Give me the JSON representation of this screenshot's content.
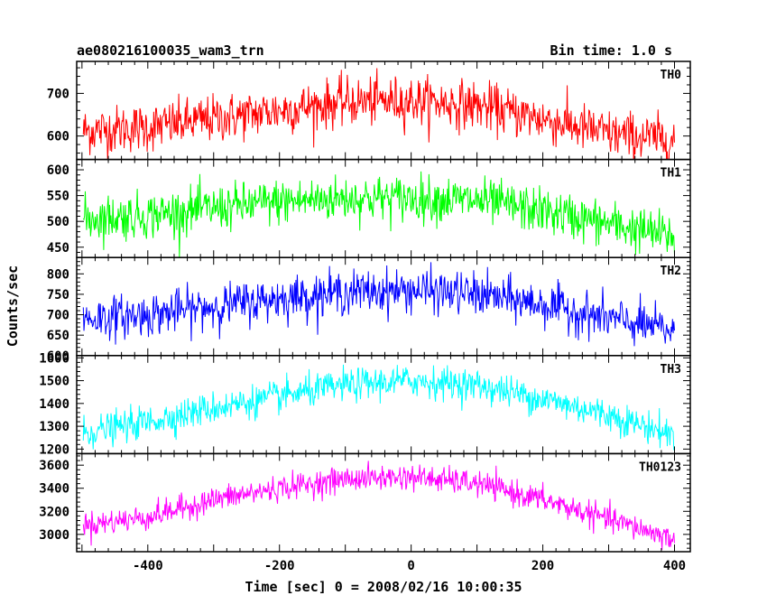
{
  "header": {
    "title": "ae080216100035_wam3_trn",
    "bin_time": "Bin time: 1.0 s"
  },
  "axes": {
    "xlabel": "Time [sec] 0 = 2008/02/16 10:00:35",
    "ylabel": "Counts/sec"
  },
  "chart_data": {
    "type": "line",
    "title": "ae080216100035_wam3_trn",
    "xlabel": "Time [sec] 0 = 2008/02/16 10:00:35",
    "ylabel": "Counts/sec",
    "xlim": [
      -508,
      424
    ],
    "xticks": [
      -400,
      -200,
      0,
      200,
      400
    ],
    "x_start": -498,
    "x_end": 400,
    "x_step": 1.0,
    "grid": false,
    "panels": [
      {
        "name": "TH0",
        "color": "#ff0000",
        "ylim": [
          545,
          775
        ],
        "yticks": [
          600,
          700
        ],
        "profile": [
          [
            -498,
            612
          ],
          [
            -400,
            620
          ],
          [
            -300,
            640
          ],
          [
            -200,
            660
          ],
          [
            -100,
            680
          ],
          [
            0,
            683
          ],
          [
            100,
            672
          ],
          [
            200,
            640
          ],
          [
            300,
            605
          ],
          [
            400,
            590
          ]
        ],
        "noise_sigma": 28
      },
      {
        "name": "TH1",
        "color": "#00ff00",
        "ylim": [
          430,
          620
        ],
        "yticks": [
          450,
          500,
          550,
          600
        ],
        "profile": [
          [
            -498,
            505
          ],
          [
            -400,
            512
          ],
          [
            -300,
            525
          ],
          [
            -200,
            538
          ],
          [
            -100,
            545
          ],
          [
            0,
            545
          ],
          [
            100,
            540
          ],
          [
            200,
            520
          ],
          [
            300,
            495
          ],
          [
            400,
            470
          ]
        ],
        "noise_sigma": 22
      },
      {
        "name": "TH2",
        "color": "#0000ff",
        "ylim": [
          600,
          840
        ],
        "yticks": [
          600,
          650,
          700,
          750,
          800
        ],
        "profile": [
          [
            -498,
            690
          ],
          [
            -400,
            700
          ],
          [
            -300,
            720
          ],
          [
            -200,
            740
          ],
          [
            -100,
            755
          ],
          [
            0,
            760
          ],
          [
            100,
            750
          ],
          [
            200,
            725
          ],
          [
            300,
            690
          ],
          [
            400,
            660
          ]
        ],
        "noise_sigma": 26
      },
      {
        "name": "TH3",
        "color": "#00ffff",
        "ylim": [
          1180,
          1610
        ],
        "yticks": [
          1200,
          1300,
          1400,
          1500,
          1600
        ],
        "profile": [
          [
            -498,
            1270
          ],
          [
            -400,
            1320
          ],
          [
            -300,
            1380
          ],
          [
            -200,
            1430
          ],
          [
            -100,
            1480
          ],
          [
            0,
            1500
          ],
          [
            100,
            1480
          ],
          [
            200,
            1420
          ],
          [
            300,
            1350
          ],
          [
            400,
            1260
          ]
        ],
        "noise_sigma": 35
      },
      {
        "name": "TH0123",
        "color": "#ff00ff",
        "ylim": [
          2850,
          3700
        ],
        "yticks": [
          3000,
          3200,
          3400,
          3600
        ],
        "profile": [
          [
            -498,
            3080
          ],
          [
            -400,
            3150
          ],
          [
            -300,
            3300
          ],
          [
            -200,
            3400
          ],
          [
            -100,
            3480
          ],
          [
            0,
            3500
          ],
          [
            100,
            3440
          ],
          [
            200,
            3300
          ],
          [
            300,
            3130
          ],
          [
            400,
            2960
          ]
        ],
        "noise_sigma": 55
      }
    ]
  }
}
